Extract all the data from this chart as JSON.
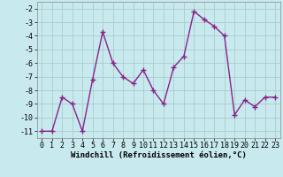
{
  "x": [
    0,
    1,
    2,
    3,
    4,
    5,
    6,
    7,
    8,
    9,
    10,
    11,
    12,
    13,
    14,
    15,
    16,
    17,
    18,
    19,
    20,
    21,
    22,
    23
  ],
  "y": [
    -11,
    -11,
    -8.5,
    -9,
    -11,
    -7.2,
    -3.7,
    -6,
    -7,
    -7.5,
    -6.5,
    -8,
    -9,
    -6.3,
    -5.5,
    -2.2,
    -2.8,
    -3.3,
    -4,
    -9.8,
    -8.7,
    -9.2,
    -8.5,
    -8.5
  ],
  "line_color": "#882288",
  "marker": "+",
  "marker_size": 4,
  "bg_color": "#c8eaee",
  "grid_color": "#aacccc",
  "xlabel": "Windchill (Refroidissement éolien,°C)",
  "xlim_min": -0.5,
  "xlim_max": 23.5,
  "ylim_min": -11.5,
  "ylim_max": -1.5,
  "yticks": [
    -11,
    -10,
    -9,
    -8,
    -7,
    -6,
    -5,
    -4,
    -3,
    -2
  ],
  "xticks": [
    0,
    1,
    2,
    3,
    4,
    5,
    6,
    7,
    8,
    9,
    10,
    11,
    12,
    13,
    14,
    15,
    16,
    17,
    18,
    19,
    20,
    21,
    22,
    23
  ],
  "xlabel_fontsize": 6.5,
  "tick_fontsize": 6,
  "line_width": 1.0,
  "marker_edge_width": 1.0
}
